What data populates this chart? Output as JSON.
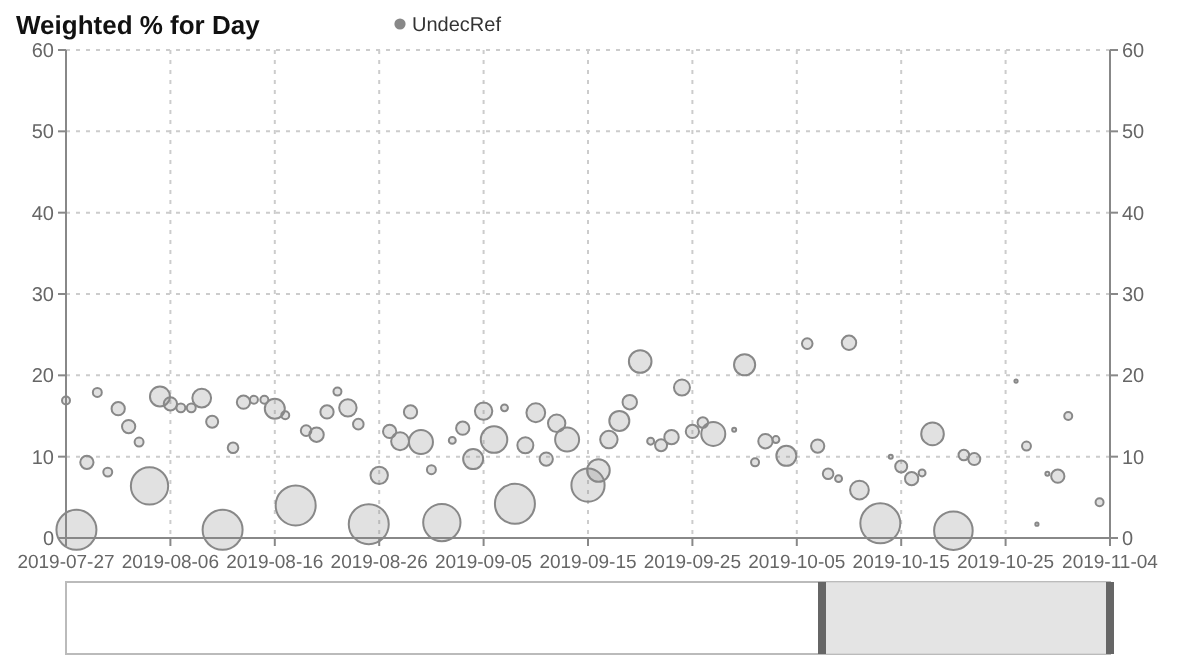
{
  "chart_data": {
    "type": "bubble",
    "title": "Weighted % for Day",
    "legend": "top",
    "grid": true,
    "marker": "circle",
    "xlim": [
      "2019-07-27",
      "2019-11-04"
    ],
    "xticks": [
      "2019-07-27",
      "2019-08-06",
      "2019-08-16",
      "2019-08-26",
      "2019-09-05",
      "2019-09-15",
      "2019-09-25",
      "2019-10-05",
      "2019-10-15",
      "2019-10-25",
      "2019-11-04"
    ],
    "ylim": [
      0,
      60
    ],
    "yticks": [
      0,
      10,
      20,
      30,
      40,
      50,
      60
    ],
    "y2lim": [
      0,
      60
    ],
    "y2ticks": [
      0,
      10,
      20,
      30,
      40,
      50,
      60
    ],
    "series": [
      {
        "name": "UndecRef",
        "color": "#888888",
        "x": [
          "2019-07-27",
          "2019-07-28",
          "2019-07-29",
          "2019-07-30",
          "2019-07-31",
          "2019-08-01",
          "2019-08-02",
          "2019-08-03",
          "2019-08-04",
          "2019-08-05",
          "2019-08-06",
          "2019-08-07",
          "2019-08-08",
          "2019-08-09",
          "2019-08-10",
          "2019-08-11",
          "2019-08-12",
          "2019-08-13",
          "2019-08-14",
          "2019-08-15",
          "2019-08-16",
          "2019-08-17",
          "2019-08-18",
          "2019-08-19",
          "2019-08-20",
          "2019-08-21",
          "2019-08-22",
          "2019-08-23",
          "2019-08-24",
          "2019-08-25",
          "2019-08-26",
          "2019-08-27",
          "2019-08-28",
          "2019-08-29",
          "2019-08-30",
          "2019-08-31",
          "2019-09-01",
          "2019-09-02",
          "2019-09-03",
          "2019-09-04",
          "2019-09-05",
          "2019-09-06",
          "2019-09-07",
          "2019-09-08",
          "2019-09-09",
          "2019-09-10",
          "2019-09-11",
          "2019-09-12",
          "2019-09-13",
          "2019-09-15",
          "2019-09-16",
          "2019-09-17",
          "2019-09-18",
          "2019-09-19",
          "2019-09-20",
          "2019-09-21",
          "2019-09-22",
          "2019-09-23",
          "2019-09-24",
          "2019-09-25",
          "2019-09-26",
          "2019-09-27",
          "2019-09-29",
          "2019-09-30",
          "2019-10-01",
          "2019-10-02",
          "2019-10-03",
          "2019-10-04",
          "2019-10-06",
          "2019-10-07",
          "2019-10-08",
          "2019-10-09",
          "2019-10-10",
          "2019-10-11",
          "2019-10-13",
          "2019-10-14",
          "2019-10-15",
          "2019-10-16",
          "2019-10-17",
          "2019-10-18",
          "2019-10-20",
          "2019-10-21",
          "2019-10-22",
          "2019-10-26",
          "2019-10-27",
          "2019-10-28",
          "2019-10-29",
          "2019-10-30",
          "2019-10-31",
          "2019-11-03"
        ],
        "values": [
          16.9,
          1.0,
          9.3,
          17.9,
          8.1,
          15.9,
          13.7,
          11.8,
          6.4,
          17.4,
          16.5,
          16.0,
          16.0,
          17.2,
          14.3,
          1.0,
          11.1,
          16.7,
          17.0,
          17.0,
          15.9,
          15.1,
          4.0,
          13.2,
          12.7,
          15.5,
          18.0,
          16.0,
          14.0,
          1.7,
          7.7,
          13.1,
          11.9,
          15.5,
          11.8,
          8.4,
          1.9,
          12.0,
          13.5,
          9.7,
          15.6,
          12.1,
          16.0,
          4.2,
          11.4,
          15.4,
          9.7,
          14.1,
          12.1,
          6.5,
          8.3,
          12.1,
          14.4,
          16.7,
          21.7,
          11.9,
          11.4,
          12.4,
          18.5,
          13.1,
          14.2,
          12.8,
          13.3,
          21.3,
          9.3,
          11.9,
          12.1,
          10.1,
          23.9,
          11.3,
          7.9,
          7.3,
          24.0,
          5.9,
          1.8,
          10.0,
          8.8,
          7.3,
          8.0,
          12.8,
          0.9,
          10.2,
          9.7,
          19.3,
          11.3,
          1.7,
          7.9,
          7.6,
          15.0,
          4.4
        ],
        "sizes": [
          0.04,
          1,
          0.11,
          0.05,
          0.05,
          0.11,
          0.11,
          0.05,
          0.87,
          0.25,
          0.11,
          0.05,
          0.05,
          0.22,
          0.09,
          1,
          0.07,
          0.11,
          0.04,
          0.04,
          0.25,
          0.04,
          1,
          0.07,
          0.13,
          0.11,
          0.04,
          0.19,
          0.07,
          1,
          0.19,
          0.11,
          0.2,
          0.11,
          0.36,
          0.05,
          0.87,
          0.03,
          0.11,
          0.25,
          0.19,
          0.44,
          0.03,
          1,
          0.16,
          0.22,
          0.11,
          0.19,
          0.36,
          0.69,
          0.32,
          0.19,
          0.25,
          0.13,
          0.32,
          0.03,
          0.09,
          0.13,
          0.16,
          0.11,
          0.07,
          0.36,
          0.01,
          0.28,
          0.04,
          0.13,
          0.03,
          0.25,
          0.07,
          0.11,
          0.07,
          0.03,
          0.13,
          0.22,
          1,
          0.01,
          0.09,
          0.11,
          0.03,
          0.32,
          0.93,
          0.07,
          0.09,
          0.005,
          0.05,
          0.005,
          0.01,
          0.11,
          0.04,
          0.04
        ]
      }
    ]
  }
}
